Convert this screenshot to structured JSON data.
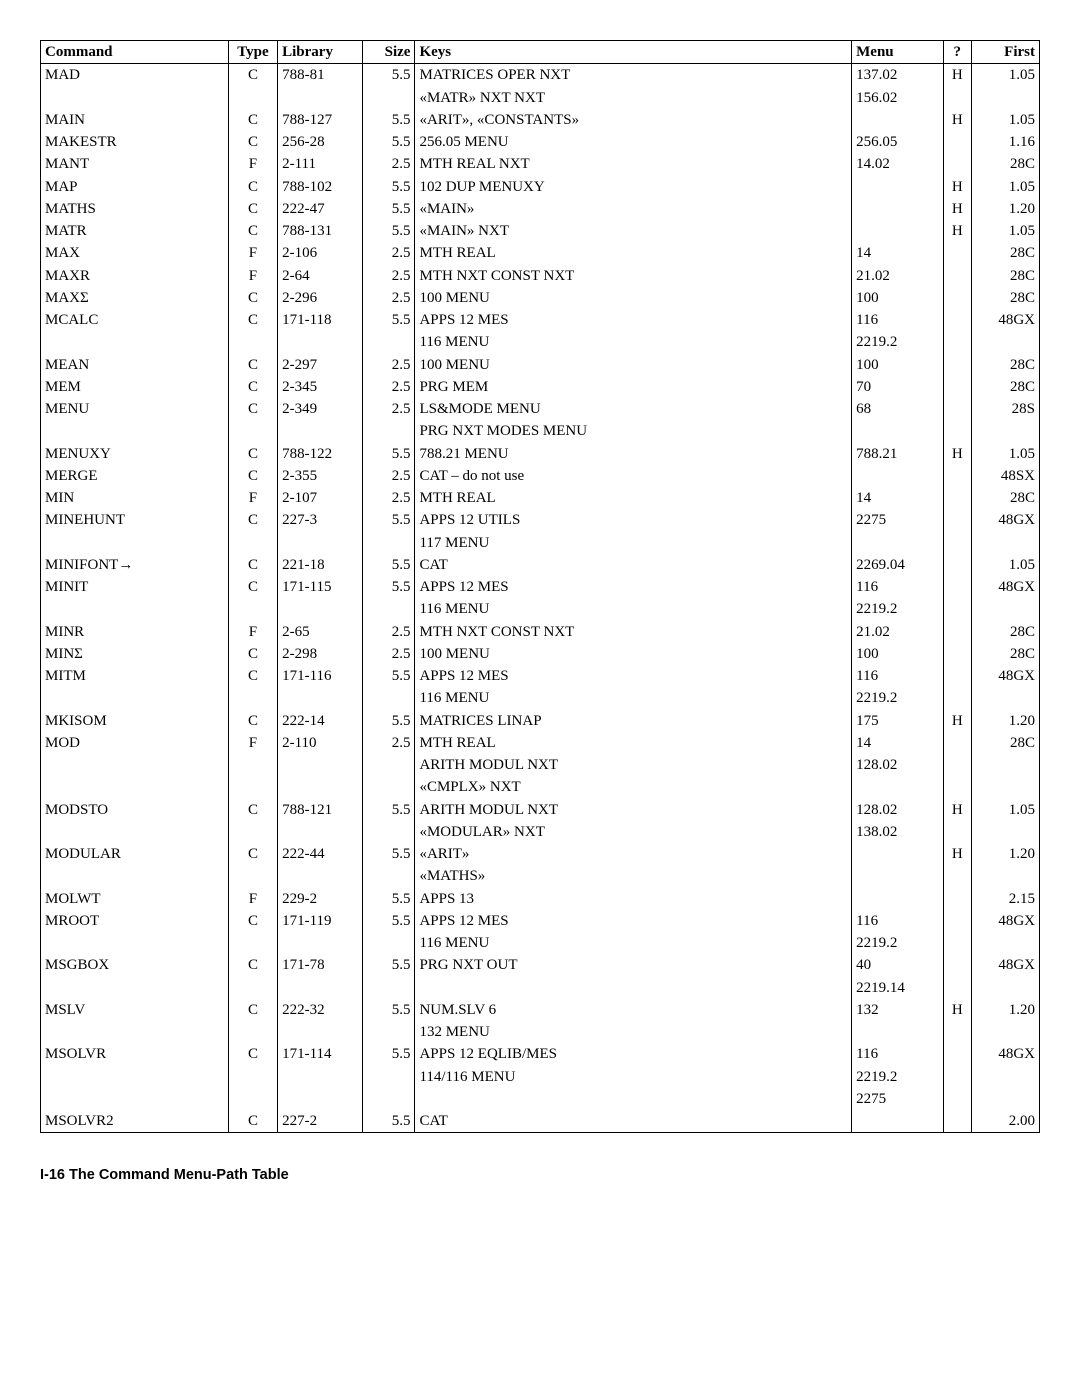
{
  "table": {
    "columns": [
      "Command",
      "Type",
      "Library",
      "Size",
      "Keys",
      "Menu",
      "?",
      "First"
    ],
    "col_align": [
      "left",
      "center",
      "left",
      "right",
      "left",
      "left",
      "center",
      "right"
    ],
    "col_classes": [
      "c-cmd",
      "c-type",
      "c-lib",
      "c-size",
      "c-keys",
      "c-menu",
      "c-help",
      "c-first"
    ]
  },
  "rows": [
    {
      "command": "MAD",
      "type": "C",
      "library": "788-81",
      "size": "5.5",
      "keys": [
        "MATRICES OPER NXT",
        "«MATR» NXT NXT"
      ],
      "menu": [
        "137.02",
        "156.02"
      ],
      "help": "H",
      "first": "1.05"
    },
    {
      "command": "MAIN",
      "type": "C",
      "library": "788-127",
      "size": "5.5",
      "keys": [
        "«ARIT», «CONSTANTS»"
      ],
      "menu": [
        ""
      ],
      "help": "H",
      "first": "1.05"
    },
    {
      "command": "MAKESTR",
      "type": "C",
      "library": "256-28",
      "size": "5.5",
      "keys": [
        "256.05 MENU"
      ],
      "menu": [
        "256.05"
      ],
      "help": "",
      "first": "1.16"
    },
    {
      "command": "MANT",
      "type": "F",
      "library": "2-111",
      "size": "2.5",
      "keys": [
        "MTH REAL NXT"
      ],
      "menu": [
        "14.02"
      ],
      "help": "",
      "first": "28C"
    },
    {
      "command": "MAP",
      "type": "C",
      "library": "788-102",
      "size": "5.5",
      "keys": [
        "102 DUP MENUXY"
      ],
      "menu": [
        ""
      ],
      "help": "H",
      "first": "1.05"
    },
    {
      "command": "MATHS",
      "type": "C",
      "library": "222-47",
      "size": "5.5",
      "keys": [
        "«MAIN»"
      ],
      "menu": [
        ""
      ],
      "help": "H",
      "first": "1.20"
    },
    {
      "command": "MATR",
      "type": "C",
      "library": "788-131",
      "size": "5.5",
      "keys": [
        "«MAIN» NXT"
      ],
      "menu": [
        ""
      ],
      "help": "H",
      "first": "1.05"
    },
    {
      "command": "MAX",
      "type": "F",
      "library": "2-106",
      "size": "2.5",
      "keys": [
        "MTH REAL"
      ],
      "menu": [
        "14"
      ],
      "help": "",
      "first": "28C"
    },
    {
      "command": "MAXR",
      "type": "F",
      "library": "2-64",
      "size": "2.5",
      "keys": [
        "MTH NXT CONST NXT"
      ],
      "menu": [
        "21.02"
      ],
      "help": "",
      "first": "28C"
    },
    {
      "command": "MAXΣ",
      "type": "C",
      "library": "2-296",
      "size": "2.5",
      "keys": [
        "100 MENU"
      ],
      "menu": [
        "100"
      ],
      "help": "",
      "first": "28C"
    },
    {
      "command": "MCALC",
      "type": "C",
      "library": "171-118",
      "size": "5.5",
      "keys": [
        "APPS 12 MES",
        "116 MENU"
      ],
      "menu": [
        "116",
        "2219.2"
      ],
      "help": "",
      "first": "48GX"
    },
    {
      "command": "MEAN",
      "type": "C",
      "library": "2-297",
      "size": "2.5",
      "keys": [
        "100 MENU"
      ],
      "menu": [
        "100"
      ],
      "help": "",
      "first": "28C"
    },
    {
      "command": "MEM",
      "type": "C",
      "library": "2-345",
      "size": "2.5",
      "keys": [
        "PRG MEM"
      ],
      "menu": [
        "70"
      ],
      "help": "",
      "first": "28C"
    },
    {
      "command": "MENU",
      "type": "C",
      "library": "2-349",
      "size": "2.5",
      "keys": [
        "LS&MODE MENU",
        "PRG NXT MODES MENU"
      ],
      "menu": [
        "68"
      ],
      "help": "",
      "first": "28S"
    },
    {
      "command": "MENUXY",
      "type": "C",
      "library": "788-122",
      "size": "5.5",
      "keys": [
        "788.21 MENU"
      ],
      "menu": [
        "788.21"
      ],
      "help": "H",
      "first": "1.05"
    },
    {
      "command": "MERGE",
      "type": "C",
      "library": "2-355",
      "size": "2.5",
      "keys": [
        "CAT – do not use"
      ],
      "menu": [
        ""
      ],
      "help": "",
      "first": "48SX"
    },
    {
      "command": "MIN",
      "type": "F",
      "library": "2-107",
      "size": "2.5",
      "keys": [
        "MTH REAL"
      ],
      "menu": [
        "14"
      ],
      "help": "",
      "first": "28C"
    },
    {
      "command": "MINEHUNT",
      "type": "C",
      "library": "227-3",
      "size": "5.5",
      "keys": [
        "APPS 12 UTILS",
        "117 MENU"
      ],
      "menu": [
        "2275"
      ],
      "help": "",
      "first": "48GX"
    },
    {
      "command": "MINIFONT→",
      "type": "C",
      "library": "221-18",
      "size": "5.5",
      "keys": [
        "CAT"
      ],
      "menu": [
        "2269.04"
      ],
      "help": "",
      "first": "1.05"
    },
    {
      "command": "MINIT",
      "type": "C",
      "library": "171-115",
      "size": "5.5",
      "keys": [
        "APPS 12 MES",
        "116 MENU"
      ],
      "menu": [
        "116",
        "2219.2"
      ],
      "help": "",
      "first": "48GX"
    },
    {
      "command": "MINR",
      "type": "F",
      "library": "2-65",
      "size": "2.5",
      "keys": [
        "MTH NXT CONST NXT"
      ],
      "menu": [
        "21.02"
      ],
      "help": "",
      "first": "28C"
    },
    {
      "command": "MINΣ",
      "type": "C",
      "library": "2-298",
      "size": "2.5",
      "keys": [
        "100 MENU"
      ],
      "menu": [
        "100"
      ],
      "help": "",
      "first": "28C"
    },
    {
      "command": "MITM",
      "type": "C",
      "library": "171-116",
      "size": "5.5",
      "keys": [
        "APPS 12 MES",
        "116 MENU"
      ],
      "menu": [
        "116",
        "2219.2"
      ],
      "help": "",
      "first": "48GX"
    },
    {
      "command": "MKISOM",
      "type": "C",
      "library": "222-14",
      "size": "5.5",
      "keys": [
        "MATRICES LINAP"
      ],
      "menu": [
        "175"
      ],
      "help": "H",
      "first": "1.20"
    },
    {
      "command": "MOD",
      "type": "F",
      "library": "2-110",
      "size": "2.5",
      "keys": [
        "MTH REAL",
        "ARITH MODUL NXT",
        "«CMPLX» NXT"
      ],
      "menu": [
        "14",
        "128.02"
      ],
      "help": "",
      "first": "28C"
    },
    {
      "command": "MODSTO",
      "type": "C",
      "library": "788-121",
      "size": "5.5",
      "keys": [
        "ARITH MODUL NXT",
        "«MODULAR» NXT"
      ],
      "menu": [
        "128.02",
        "138.02"
      ],
      "help": "H",
      "first": "1.05"
    },
    {
      "command": "MODULAR",
      "type": "C",
      "library": "222-44",
      "size": "5.5",
      "keys": [
        "«ARIT»",
        "«MATHS»"
      ],
      "menu": [
        ""
      ],
      "help": "H",
      "first": "1.20"
    },
    {
      "command": "MOLWT",
      "type": "F",
      "library": "229-2",
      "size": "5.5",
      "keys": [
        "APPS 13"
      ],
      "menu": [
        ""
      ],
      "help": "",
      "first": "2.15"
    },
    {
      "command": "MROOT",
      "type": "C",
      "library": "171-119",
      "size": "5.5",
      "keys": [
        "APPS 12 MES",
        "116 MENU"
      ],
      "menu": [
        "116",
        "2219.2"
      ],
      "help": "",
      "first": "48GX"
    },
    {
      "command": "MSGBOX",
      "type": "C",
      "library": "171-78",
      "size": "5.5",
      "keys": [
        "PRG NXT OUT"
      ],
      "menu": [
        "40",
        "2219.14"
      ],
      "help": "",
      "first": "48GX"
    },
    {
      "command": "MSLV",
      "type": "C",
      "library": "222-32",
      "size": "5.5",
      "keys": [
        "NUM.SLV 6",
        "132 MENU"
      ],
      "menu": [
        "132"
      ],
      "help": "H",
      "first": "1.20"
    },
    {
      "command": "MSOLVR",
      "type": "C",
      "library": "171-114",
      "size": "5.5",
      "keys": [
        "APPS 12 EQLIB/MES",
        "114/116 MENU"
      ],
      "menu": [
        "116",
        "2219.2",
        "2275"
      ],
      "help": "",
      "first": "48GX"
    },
    {
      "command": "MSOLVR2",
      "type": "C",
      "library": "227-2",
      "size": "5.5",
      "keys": [
        "CAT"
      ],
      "menu": [
        ""
      ],
      "help": "",
      "first": "2.00"
    }
  ],
  "footer": "I-16   The Command Menu-Path Table"
}
